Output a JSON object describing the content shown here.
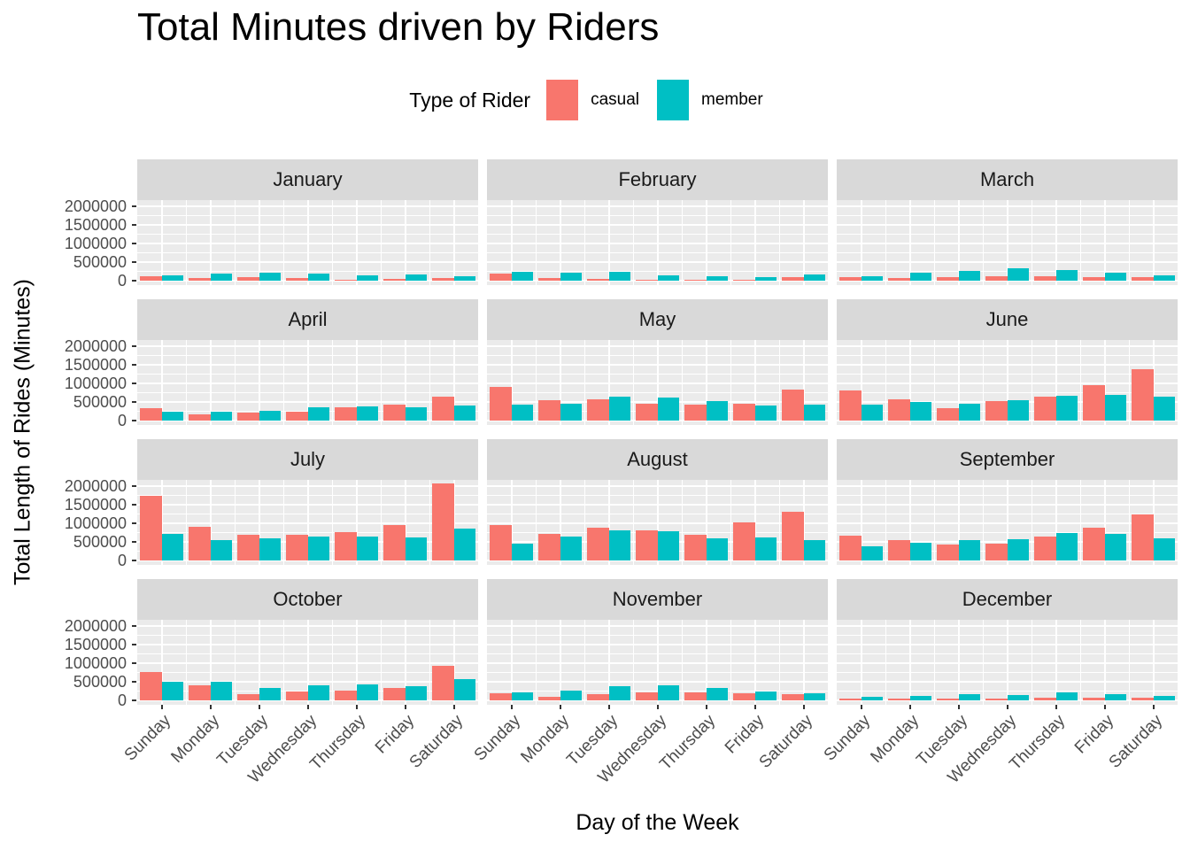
{
  "title": "Total Minutes driven by Riders",
  "legend": {
    "title": "Type of Rider",
    "entries": [
      {
        "label": "casual",
        "color": "#F8766D"
      },
      {
        "label": "member",
        "color": "#00BFC4"
      }
    ]
  },
  "colors": {
    "casual": "#F8766D",
    "member": "#00BFC4",
    "panel_bg": "#EBEBEB",
    "strip_bg": "#D9D9D9",
    "grid": "#FFFFFF"
  },
  "chart_data": {
    "type": "bar",
    "title": "Total Minutes driven by Riders",
    "xlabel": "Day of the Week",
    "ylabel": "Total Length of Rides (Minutes)",
    "legend_title": "Type of Rider",
    "legend_position": "top",
    "grouping": "dodged",
    "facet_layout": "3 columns x 4 rows, faceted by month",
    "grid": true,
    "categories": [
      "Sunday",
      "Monday",
      "Tuesday",
      "Wednesday",
      "Thursday",
      "Friday",
      "Saturday"
    ],
    "series_names": [
      "casual",
      "member"
    ],
    "y_tick_values": [
      0,
      500000,
      1000000,
      1500000,
      2000000
    ],
    "y_tick_labels": [
      "0",
      "500000",
      "1000000",
      "1500000",
      "2000000"
    ],
    "y_minor": [
      250000,
      750000,
      1250000,
      1750000
    ],
    "ylim": [
      0,
      2170000
    ],
    "facets": [
      {
        "month": "January",
        "casual": [
          110000,
          65000,
          85000,
          65000,
          30000,
          40000,
          80000
        ],
        "member": [
          145000,
          185000,
          215000,
          200000,
          145000,
          165000,
          110000
        ]
      },
      {
        "month": "February",
        "casual": [
          185000,
          70000,
          55000,
          25000,
          25000,
          15000,
          90000
        ],
        "member": [
          230000,
          205000,
          240000,
          145000,
          125000,
          105000,
          160000
        ]
      },
      {
        "month": "March",
        "casual": [
          95000,
          80000,
          105000,
          125000,
          110000,
          105000,
          90000
        ],
        "member": [
          125000,
          215000,
          270000,
          325000,
          285000,
          215000,
          150000
        ]
      },
      {
        "month": "April",
        "casual": [
          340000,
          160000,
          215000,
          230000,
          360000,
          420000,
          650000
        ],
        "member": [
          245000,
          245000,
          270000,
          355000,
          390000,
          365000,
          395000
        ]
      },
      {
        "month": "May",
        "casual": [
          910000,
          555000,
          565000,
          460000,
          430000,
          460000,
          825000
        ],
        "member": [
          430000,
          460000,
          650000,
          625000,
          525000,
          405000,
          430000
        ]
      },
      {
        "month": "June",
        "casual": [
          810000,
          560000,
          340000,
          515000,
          645000,
          960000,
          1370000
        ],
        "member": [
          430000,
          510000,
          450000,
          555000,
          665000,
          700000,
          645000
        ]
      },
      {
        "month": "July",
        "casual": [
          1740000,
          915000,
          700000,
          700000,
          770000,
          960000,
          2080000
        ],
        "member": [
          705000,
          540000,
          595000,
          635000,
          650000,
          620000,
          850000
        ]
      },
      {
        "month": "August",
        "casual": [
          960000,
          705000,
          870000,
          810000,
          685000,
          1015000,
          1310000
        ],
        "member": [
          460000,
          650000,
          810000,
          780000,
          595000,
          620000,
          540000
        ]
      },
      {
        "month": "September",
        "casual": [
          660000,
          550000,
          430000,
          460000,
          640000,
          875000,
          1245000
        ],
        "member": [
          390000,
          470000,
          550000,
          565000,
          730000,
          715000,
          595000
        ]
      },
      {
        "month": "October",
        "casual": [
          770000,
          415000,
          175000,
          240000,
          255000,
          340000,
          920000
        ],
        "member": [
          500000,
          500000,
          325000,
          415000,
          420000,
          380000,
          565000
        ]
      },
      {
        "month": "November",
        "casual": [
          200000,
          95000,
          175000,
          220000,
          220000,
          200000,
          175000
        ],
        "member": [
          205000,
          260000,
          390000,
          405000,
          325000,
          245000,
          185000
        ]
      },
      {
        "month": "December",
        "casual": [
          50000,
          50000,
          50000,
          50000,
          80000,
          65000,
          80000
        ],
        "member": [
          95000,
          130000,
          175000,
          145000,
          220000,
          165000,
          125000
        ]
      }
    ]
  }
}
